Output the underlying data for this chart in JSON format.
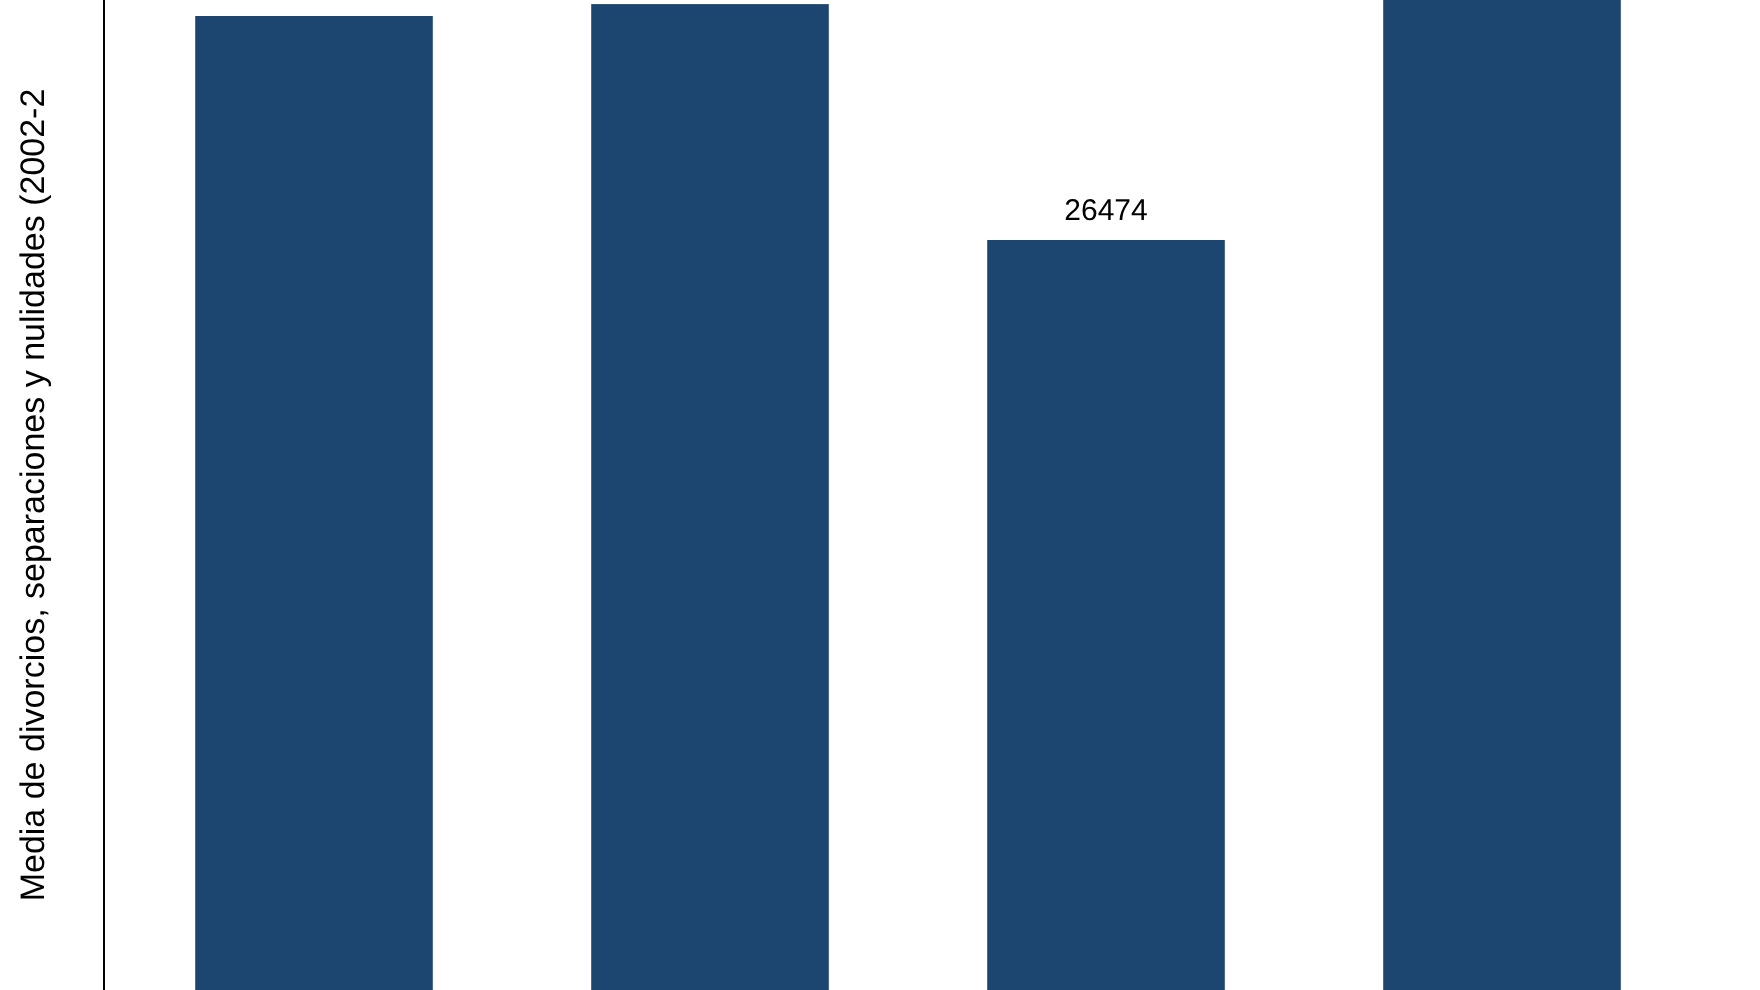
{
  "chart_data": {
    "type": "bar",
    "ylabel": "Media de divorcios, separaciones y nulidades (2002-2",
    "categories": [
      null,
      null,
      null,
      null
    ],
    "ylim": [
      0,
      34945
    ],
    "series": [
      {
        "color": "#1c4670",
        "values": [
          34380,
          34800,
          26474,
          34945
        ],
        "value_labels": [
          null,
          null,
          "26474",
          null
        ]
      }
    ]
  }
}
